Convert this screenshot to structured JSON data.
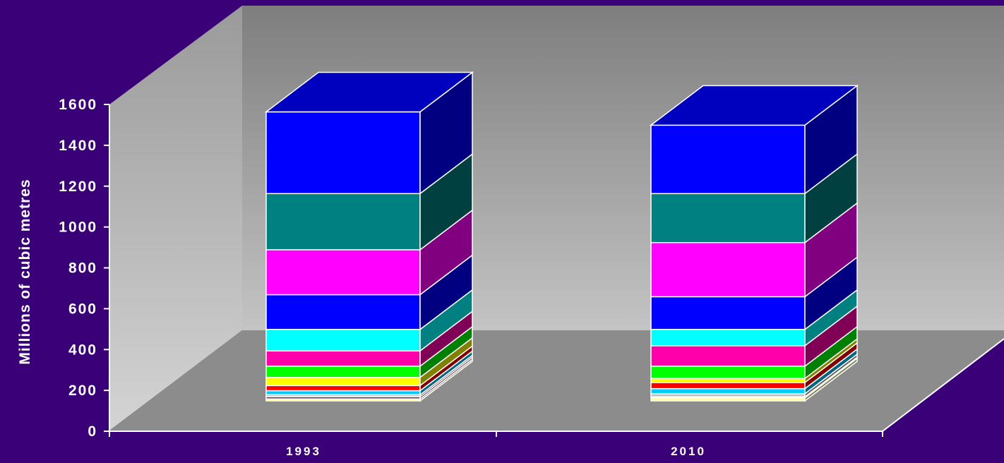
{
  "chart_data": {
    "type": "bar",
    "stacked": true,
    "three_d": true,
    "categories": [
      "1993",
      "2010"
    ],
    "ylabel": "Millions of cubic metres",
    "xlabel": "",
    "ylim": [
      0,
      1600
    ],
    "yticks": [
      0,
      200,
      400,
      600,
      800,
      1000,
      1200,
      1400,
      1600
    ],
    "grid": false,
    "legend": "none",
    "segment_colors": [
      "#ffff99",
      "#800080",
      "#c0c0c0",
      "#00ccff",
      "#ff0000",
      "#ffff00",
      "#00ff00",
      "#ff00aa",
      "#00ffff",
      "#0000ff",
      "#ff00ff",
      "#008080",
      "#0000ff"
    ],
    "series": [
      {
        "values": [
          10,
          15
        ]
      },
      {
        "values": [
          10,
          5
        ]
      },
      {
        "values": [
          10,
          15
        ]
      },
      {
        "values": [
          20,
          25
        ]
      },
      {
        "values": [
          25,
          30
        ]
      },
      {
        "values": [
          40,
          20
        ]
      },
      {
        "values": [
          55,
          60
        ]
      },
      {
        "values": [
          75,
          100
        ]
      },
      {
        "values": [
          105,
          80
        ]
      },
      {
        "values": [
          170,
          160
        ]
      },
      {
        "values": [
          220,
          265
        ]
      },
      {
        "values": [
          275,
          240
        ]
      },
      {
        "values": [
          400,
          335
        ]
      }
    ]
  },
  "colors": {
    "background": "#3a0078",
    "axis_text": "#ffffff",
    "back_wall": "#a8a8a8",
    "side_wall": "#c8c8c8",
    "floor": "#8c8c8c"
  }
}
